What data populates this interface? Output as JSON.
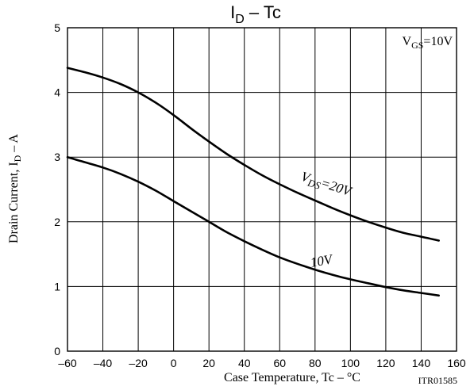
{
  "chart_data": {
    "type": "line",
    "title": {
      "main": "I",
      "sub": "D",
      "suffix": " – Tc"
    },
    "xlabel": "Case Temperature, Tc  –  °C",
    "ylabel": {
      "main": "Drain Current, I",
      "sub": "D",
      "suffix": "  –  A"
    },
    "xlim": [
      -60,
      160
    ],
    "ylim": [
      0,
      5
    ],
    "xticks": [
      -60,
      -40,
      -20,
      0,
      20,
      40,
      60,
      80,
      100,
      120,
      140,
      160
    ],
    "xtick_labels": [
      "–60",
      "–40",
      "–20",
      "0",
      "20",
      "40",
      "60",
      "80",
      "100",
      "120",
      "140",
      "160"
    ],
    "yticks": [
      0,
      1,
      2,
      3,
      4,
      5
    ],
    "ytick_labels": [
      "0",
      "1",
      "2",
      "3",
      "4",
      "5"
    ],
    "grid": true,
    "condition": {
      "main": "V",
      "sub": "GS",
      "suffix": "=10V"
    },
    "figure_code": "ITR01585",
    "series": [
      {
        "label": {
          "main": "V",
          "sub": "DS",
          "suffix": "=20V"
        },
        "x": [
          -60,
          -50,
          -40,
          -30,
          -20,
          -10,
          0,
          10,
          20,
          30,
          40,
          50,
          60,
          70,
          80,
          90,
          100,
          110,
          120,
          130,
          140,
          150
        ],
        "y": [
          4.38,
          4.31,
          4.23,
          4.13,
          4.0,
          3.84,
          3.65,
          3.44,
          3.24,
          3.05,
          2.88,
          2.72,
          2.58,
          2.45,
          2.33,
          2.21,
          2.1,
          2.0,
          1.91,
          1.83,
          1.77,
          1.71
        ]
      },
      {
        "label": {
          "main": "10V"
        },
        "x": [
          -60,
          -50,
          -40,
          -30,
          -20,
          -10,
          0,
          10,
          20,
          30,
          40,
          50,
          60,
          70,
          80,
          90,
          100,
          110,
          120,
          130,
          140,
          150
        ],
        "y": [
          3.0,
          2.92,
          2.84,
          2.74,
          2.62,
          2.48,
          2.32,
          2.16,
          2.0,
          1.84,
          1.7,
          1.57,
          1.45,
          1.35,
          1.26,
          1.18,
          1.11,
          1.05,
          0.99,
          0.94,
          0.9,
          0.86
        ]
      }
    ]
  }
}
